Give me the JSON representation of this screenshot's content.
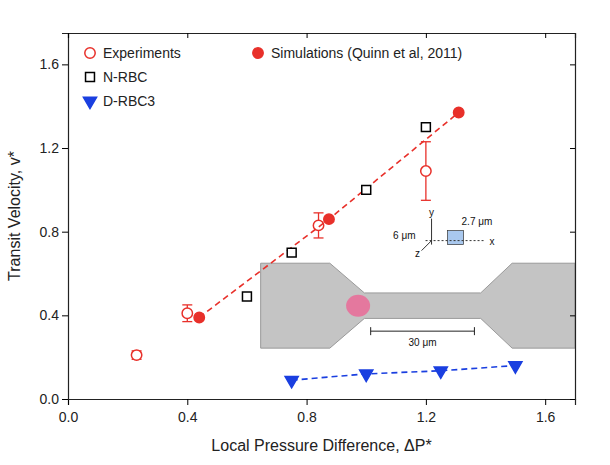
{
  "chart_data": {
    "type": "scatter",
    "xlabel": "Local Pressure Difference, ΔP*",
    "ylabel": "Transit Velocity, v*",
    "xlim": [
      0,
      1.7
    ],
    "ylim": [
      0,
      1.75
    ],
    "xticks": [
      {
        "value": 0,
        "label": "0.0"
      },
      0.4,
      0.8,
      1.2,
      1.6
    ],
    "yticks": [
      {
        "value": 0,
        "label": "0.0"
      },
      0.4,
      0.8,
      1.2,
      1.6
    ],
    "legend": "upper left",
    "series": [
      {
        "name": "Experiments",
        "color": "#e8302a",
        "marker": "open_circle",
        "x": [
          0.23,
          0.4,
          0.84,
          1.2
        ],
        "values": [
          0.21,
          0.41,
          0.83,
          1.09
        ],
        "errors": [
          0.02,
          0.04,
          0.06,
          0.14
        ]
      },
      {
        "name": "Simulations (Quinn et al, 2011)",
        "color": "#e8302a",
        "marker": "circle",
        "line_style": "dashed",
        "x": [
          0.44,
          0.875,
          1.31
        ],
        "values": [
          0.39,
          0.86,
          1.37
        ]
      },
      {
        "name": "N-RBC",
        "color": "#000000",
        "marker": "open_square",
        "x": [
          0.6,
          0.75,
          1.0,
          1.2
        ],
        "values": [
          0.49,
          0.7,
          1.0,
          1.3
        ]
      },
      {
        "name": "D-RBC3",
        "color": "#1a3fe0",
        "marker": "triangle_down",
        "line_style": "dashed",
        "x": [
          0.75,
          1.0,
          1.25,
          1.5
        ],
        "values": [
          0.09,
          0.12,
          0.135,
          0.16
        ]
      }
    ],
    "annotations": [
      "2.7 μm",
      "6 μm",
      "30 μm",
      "x",
      "y",
      "z"
    ]
  }
}
